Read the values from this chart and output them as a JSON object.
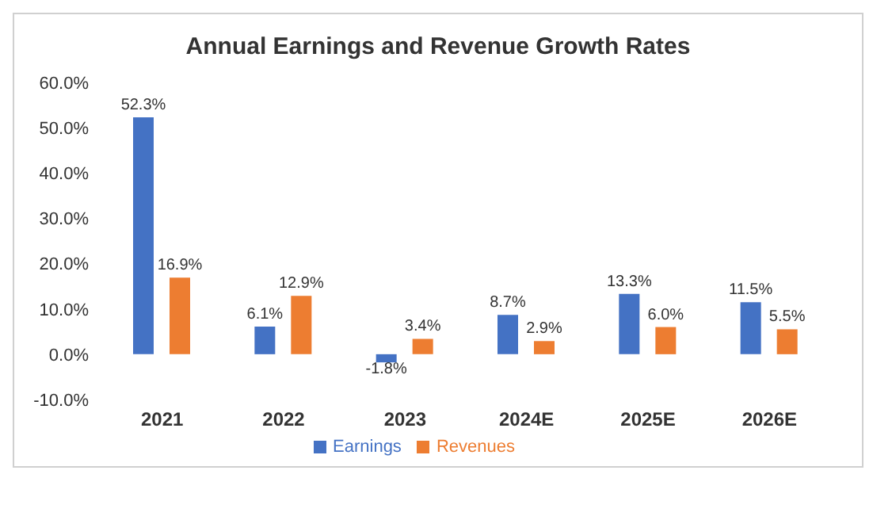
{
  "chart_data": {
    "type": "bar",
    "title": "Annual Earnings and Revenue Growth Rates",
    "categories": [
      "2021",
      "2022",
      "2023",
      "2024E",
      "2025E",
      "2026E"
    ],
    "series": [
      {
        "name": "Earnings",
        "color": "#4472c4",
        "values": [
          52.3,
          6.1,
          -1.8,
          8.7,
          13.3,
          11.5
        ],
        "value_labels": [
          "52.3%",
          "6.1%",
          "-1.8%",
          "8.7%",
          "13.3%",
          "11.5%"
        ]
      },
      {
        "name": "Revenues",
        "color": "#ed7d31",
        "values": [
          16.9,
          12.9,
          3.4,
          2.9,
          6.0,
          5.5
        ],
        "value_labels": [
          "16.9%",
          "12.9%",
          "3.4%",
          "2.9%",
          "6.0%",
          "5.5%"
        ]
      }
    ],
    "ylim": [
      -10,
      60
    ],
    "yticks": [
      {
        "value": -10,
        "label": "-10.0%"
      },
      {
        "value": 0,
        "label": "0.0%"
      },
      {
        "value": 10,
        "label": "10.0%"
      },
      {
        "value": 20,
        "label": "20.0%"
      },
      {
        "value": 30,
        "label": "30.0%"
      },
      {
        "value": 40,
        "label": "40.0%"
      },
      {
        "value": 50,
        "label": "50.0%"
      },
      {
        "value": 60,
        "label": "60.0%"
      }
    ],
    "grid": false,
    "legend": "bottom"
  }
}
